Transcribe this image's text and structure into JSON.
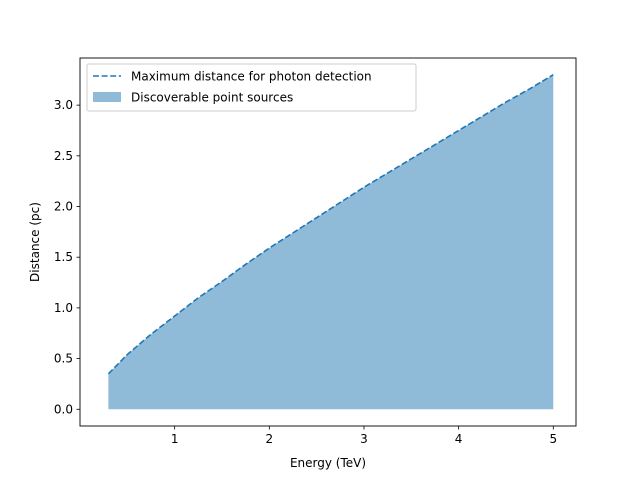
{
  "chart_data": {
    "type": "area",
    "xlabel": "Energy (TeV)",
    "ylabel": "Distance (pc)",
    "xlim": [
      0.0,
      5.24
    ],
    "ylim": [
      -0.165,
      3.465
    ],
    "xticks": [
      1,
      2,
      3,
      4,
      5
    ],
    "xtick_labels": [
      "1",
      "2",
      "3",
      "4",
      "5"
    ],
    "yticks": [
      0.0,
      0.5,
      1.0,
      1.5,
      2.0,
      2.5,
      3.0
    ],
    "ytick_labels": [
      "0.0",
      "0.5",
      "1.0",
      "1.5",
      "2.0",
      "2.5",
      "3.0"
    ],
    "grid": false,
    "legend_position": "upper-left",
    "series": [
      {
        "name": "Maximum distance for photon detection",
        "kind": "line",
        "style": "dashed",
        "color": "#1f77b4",
        "x": [
          0.3,
          0.5,
          0.75,
          1.0,
          1.25,
          1.5,
          1.75,
          2.0,
          2.25,
          2.5,
          2.75,
          3.0,
          3.25,
          3.5,
          3.75,
          4.0,
          4.25,
          4.5,
          4.75,
          5.0
        ],
        "y": [
          0.35,
          0.54,
          0.74,
          0.92,
          1.1,
          1.26,
          1.43,
          1.59,
          1.74,
          1.89,
          2.04,
          2.19,
          2.33,
          2.47,
          2.61,
          2.75,
          2.89,
          3.03,
          3.16,
          3.3
        ]
      },
      {
        "name": "Discoverable point sources",
        "kind": "fill",
        "color": "#1f77b4",
        "alpha": 0.5,
        "baseline": 0.0,
        "x": [
          0.3,
          0.5,
          0.75,
          1.0,
          1.25,
          1.5,
          1.75,
          2.0,
          2.25,
          2.5,
          2.75,
          3.0,
          3.25,
          3.5,
          3.75,
          4.0,
          4.25,
          4.5,
          4.75,
          5.0
        ],
        "y": [
          0.35,
          0.54,
          0.74,
          0.92,
          1.1,
          1.26,
          1.43,
          1.59,
          1.74,
          1.89,
          2.04,
          2.19,
          2.33,
          2.47,
          2.61,
          2.75,
          2.89,
          3.03,
          3.16,
          3.3
        ]
      }
    ]
  }
}
